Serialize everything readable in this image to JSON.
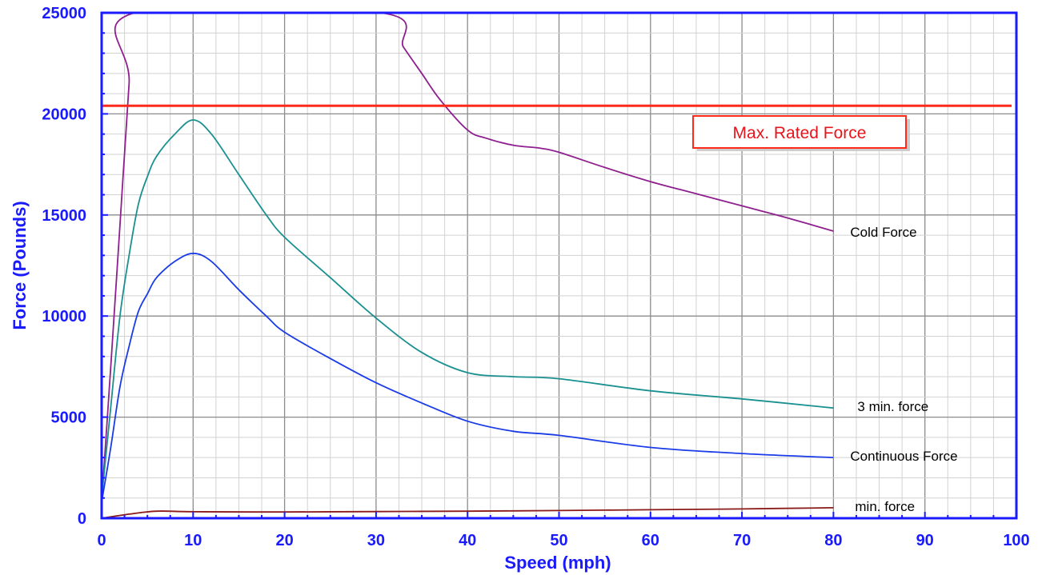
{
  "chart_data": {
    "type": "line",
    "title": "",
    "xlabel": "Speed  (mph)",
    "ylabel": "Force  (Pounds)",
    "xlim": [
      0,
      100
    ],
    "ylim": [
      0,
      25000
    ],
    "x_ticks": [
      "0",
      "10",
      "20",
      "30",
      "40",
      "50",
      "60",
      "70",
      "80",
      "90",
      "100"
    ],
    "y_ticks": [
      "0",
      "5000",
      "10000",
      "15000",
      "20000",
      "25000"
    ],
    "grid": true,
    "axis_color": "#1a1aff",
    "series": [
      {
        "name": "Cold Force",
        "color": "#8e1f8e",
        "x": [
          0,
          1,
          2,
          3,
          3.6,
          30.5,
          33,
          35,
          37,
          40,
          42,
          45,
          48,
          50,
          55,
          60,
          65,
          70,
          75,
          80
        ],
        "y": [
          800,
          7500,
          14500,
          21500,
          25000,
          25000,
          23300,
          22000,
          20700,
          19200,
          18800,
          18450,
          18300,
          18100,
          17350,
          16650,
          16050,
          15450,
          14850,
          14200
        ]
      },
      {
        "name": "3 min. force",
        "color": "#1a9090",
        "x": [
          0,
          1,
          2,
          3,
          4,
          5,
          6,
          8,
          10,
          12,
          15,
          18,
          20,
          25,
          30,
          35,
          40,
          45,
          50,
          60,
          70,
          80
        ],
        "y": [
          1000,
          5500,
          10000,
          13000,
          15500,
          16900,
          17900,
          19000,
          19700,
          19000,
          17000,
          15000,
          13900,
          11900,
          9900,
          8200,
          7200,
          7000,
          6900,
          6300,
          5900,
          5450
        ]
      },
      {
        "name": "Continuous Force",
        "color": "#1a3be8",
        "x": [
          0,
          1,
          2,
          3,
          4,
          5,
          6,
          8,
          10,
          12,
          15,
          18,
          20,
          25,
          30,
          35,
          40,
          45,
          50,
          60,
          70,
          80
        ],
        "y": [
          800,
          3500,
          6500,
          8500,
          10200,
          11100,
          11900,
          12700,
          13100,
          12700,
          11300,
          10000,
          9200,
          7900,
          6700,
          5700,
          4800,
          4300,
          4100,
          3500,
          3200,
          3000
        ]
      },
      {
        "name": "min. force",
        "color": "#8b1a1a",
        "x": [
          0,
          3,
          6,
          10,
          20,
          30,
          40,
          50,
          60,
          70,
          80
        ],
        "y": [
          0,
          200,
          350,
          320,
          310,
          330,
          350,
          380,
          420,
          460,
          520
        ]
      }
    ],
    "reference_lines": [
      {
        "label": "Max. Rated  Force",
        "y": 20400,
        "color": "#ff2a1a"
      }
    ]
  }
}
